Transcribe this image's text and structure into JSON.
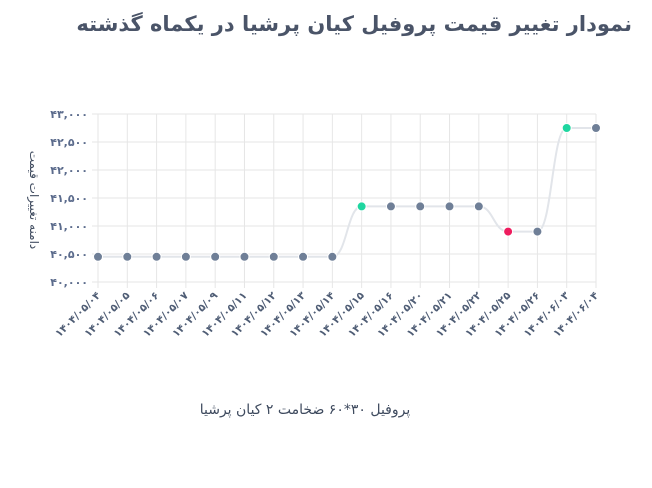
{
  "title": "نمودار تغییر قیمت پروفیل کیان پرشیا در یکماه گذشته",
  "chart_data": {
    "type": "line",
    "title": "نمودار تغییر قیمت پروفیل کیان پرشیا در یکماه گذشته",
    "xlabel": "پروفیل ۳۰*۶۰ ضخامت ۲ کیان پرشیا",
    "ylabel": "دامنه تغییرات قیمت",
    "ylim": [
      40000,
      43000
    ],
    "yticks": [
      40000,
      40500,
      41000,
      41500,
      42000,
      42500,
      43000
    ],
    "ytick_labels": [
      "۴۰,۰۰۰",
      "۴۰,۵۰۰",
      "۴۱,۰۰۰",
      "۴۱,۵۰۰",
      "۴۲,۰۰۰",
      "۴۲,۵۰۰",
      "۴۳,۰۰۰"
    ],
    "categories": [
      "۱۴۰۴/۰۵/۰۴",
      "۱۴۰۴/۰۵/۰۵",
      "۱۴۰۴/۰۵/۰۶",
      "۱۴۰۴/۰۵/۰۷",
      "۱۴۰۴/۰۵/۰۹",
      "۱۴۰۴/۰۵/۱۱",
      "۱۴۰۴/۰۵/۱۲",
      "۱۴۰۴/۰۵/۱۳",
      "۱۴۰۴/۰۵/۱۴",
      "۱۴۰۴/۰۵/۱۵",
      "۱۴۰۴/۰۵/۱۶",
      "۱۴۰۴/۰۵/۲۰",
      "۱۴۰۴/۰۵/۲۱",
      "۱۴۰۴/۰۵/۲۲",
      "۱۴۰۴/۰۵/۲۵",
      "۱۴۰۴/۰۵/۲۶",
      "۱۴۰۴/۰۶/۰۳",
      "۱۴۰۴/۰۶/۰۴"
    ],
    "values": [
      40450,
      40450,
      40450,
      40450,
      40450,
      40450,
      40450,
      40450,
      40450,
      41350,
      41350,
      41350,
      41350,
      41350,
      40900,
      40900,
      42750,
      42750
    ],
    "marker_states": [
      "same",
      "same",
      "same",
      "same",
      "same",
      "same",
      "same",
      "same",
      "same",
      "up",
      "same",
      "same",
      "same",
      "same",
      "down",
      "same",
      "up",
      "same"
    ],
    "grid": true
  },
  "colors": {
    "line": "#e2e5ea",
    "grid": "#e6e6e6",
    "marker_same": "#6f7f97",
    "marker_up": "#1fd6a0",
    "marker_down": "#ee1c5e",
    "text": "#4f5d75"
  }
}
